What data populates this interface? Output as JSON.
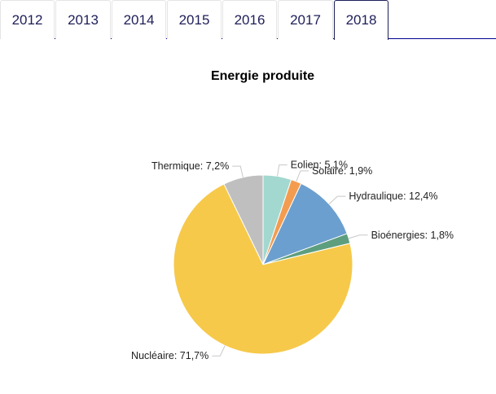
{
  "tabs": [
    {
      "label": "2012",
      "active": false
    },
    {
      "label": "2013",
      "active": false
    },
    {
      "label": "2014",
      "active": false
    },
    {
      "label": "2015",
      "active": false
    },
    {
      "label": "2016",
      "active": false
    },
    {
      "label": "2017",
      "active": false
    },
    {
      "label": "2018",
      "active": true
    }
  ],
  "chart_data": {
    "type": "pie",
    "title": "Energie produite",
    "slices": [
      {
        "name": "Eolien",
        "value": 5.1,
        "label": "Eolien: 5,1%",
        "color": "#a2d8cf"
      },
      {
        "name": "Solaire",
        "value": 1.9,
        "label": "Solaire: 1,9%",
        "color": "#f39c50"
      },
      {
        "name": "Hydraulique",
        "value": 12.4,
        "label": "Hydraulique: 12,4%",
        "color": "#6b9fcf"
      },
      {
        "name": "Bioénergies",
        "value": 1.8,
        "label": "Bioénergies: 1,8%",
        "color": "#5d9e7f"
      },
      {
        "name": "Nucléaire",
        "value": 71.7,
        "label": "Nucléaire: 71,7%",
        "color": "#f6c94a"
      },
      {
        "name": "Thermique",
        "value": 7.2,
        "label": "Thermique: 7,2%",
        "color": "#bfbfbf"
      }
    ]
  }
}
